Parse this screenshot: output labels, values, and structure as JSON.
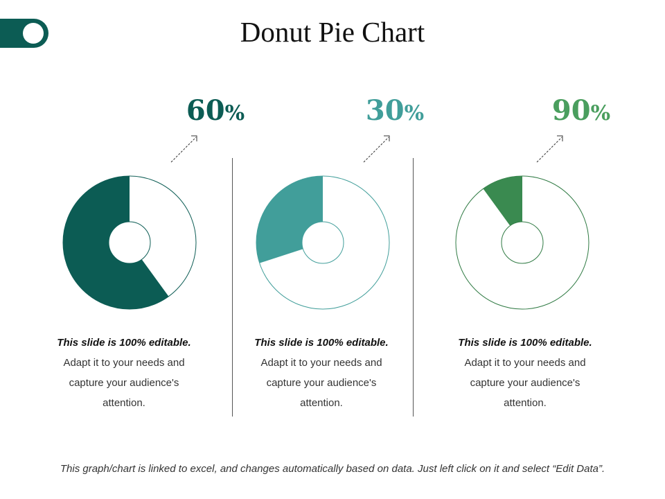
{
  "title": "Donut Pie Chart",
  "footer": "This graph/chart is linked to excel, and changes automatically based on data. Just left click on it and select “Edit Data”.",
  "chart_data": [
    {
      "type": "pie",
      "value": 60,
      "label_number": "60",
      "label_unit": "%",
      "color": "#0c5c54",
      "ring_color": "#0c5c54",
      "caption": {
        "heading": "This slide is 100% editable.",
        "line1": "Adapt it to your needs and",
        "line2": "capture your audience's",
        "line3": "attention."
      }
    },
    {
      "type": "pie",
      "value": 30,
      "label_number": "30",
      "label_unit": "%",
      "color": "#419e9a",
      "ring_color": "#419e9a",
      "caption": {
        "heading": "This slide is 100% editable.",
        "line1": "Adapt it to your needs and",
        "line2": "capture your audience's",
        "line3": "attention."
      }
    },
    {
      "type": "pie",
      "value": 90,
      "label_number": "90",
      "label_unit": "%",
      "color": "#4a9e5e",
      "ring_color": "#2f7a43",
      "caption": {
        "heading": "This slide is 100% editable.",
        "line1": "Adapt it to your needs and",
        "line2": "capture your audience's",
        "line3": "attention."
      }
    }
  ]
}
